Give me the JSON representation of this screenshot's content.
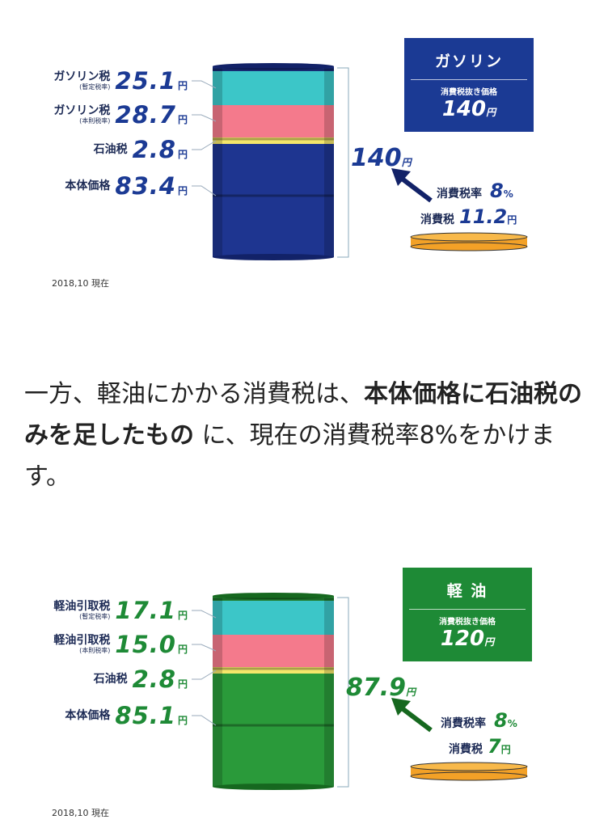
{
  "panels": [
    {
      "title": "ガソリン",
      "box_label": "消費税抜き価格",
      "box_price": "140",
      "yen": "円",
      "rows": [
        {
          "name": "ガソリン税",
          "sub": "(暫定税率)",
          "value": "25.1"
        },
        {
          "name": "ガソリン税",
          "sub": "(本則税率)",
          "value": "28.7"
        },
        {
          "name": "石油税",
          "value": "2.8"
        },
        {
          "name": "本体価格",
          "value": "83.4"
        }
      ],
      "total": "140",
      "rate_label": "消費税率",
      "rate": "8",
      "rate_unit": "%",
      "tax_label": "消費税",
      "tax": "11.2",
      "date": "2018,10 現在"
    },
    {
      "title": "軽 油",
      "box_label": "消費税抜き価格",
      "box_price": "120",
      "yen": "円",
      "rows": [
        {
          "name": "軽油引取税",
          "sub": "(暫定税率)",
          "value": "17.1"
        },
        {
          "name": "軽油引取税",
          "sub": "(本則税率)",
          "value": "15.0"
        },
        {
          "name": "石油税",
          "value": "2.8"
        },
        {
          "name": "本体価格",
          "value": "85.1"
        }
      ],
      "total": "87.9",
      "rate_label": "消費税率",
      "rate": "8",
      "rate_unit": "%",
      "tax_label": "消費税",
      "tax": "7",
      "date": "2018,10 現在"
    }
  ],
  "paragraph": {
    "part1": "一方、軽油にかかる消費税は、",
    "bold": "本体価格に石油税のみを足したもの",
    "part2": " に、現在の消費税率8%をかけます。"
  }
}
